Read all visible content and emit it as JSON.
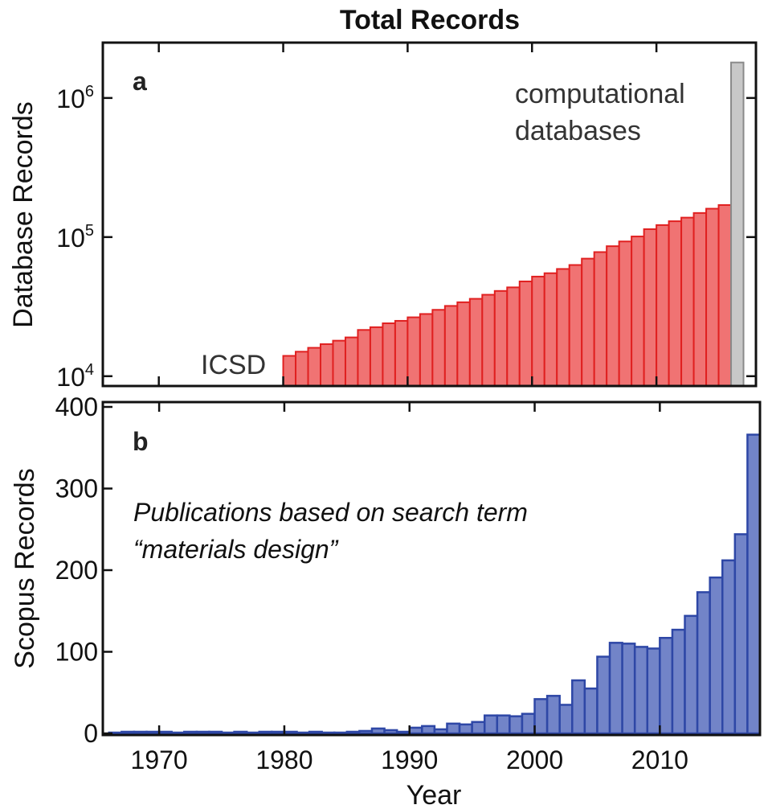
{
  "figure": {
    "title": "Total Records"
  },
  "chart_data": [
    {
      "panel": "a",
      "type": "bar",
      "ylabel": "Database Records",
      "yscale": "log",
      "ylim": [
        8500,
        2500000
      ],
      "xlim": [
        1965.5,
        2018
      ],
      "yticks": [
        10000,
        100000,
        1000000
      ],
      "ytick_labels": [
        {
          "base": "10",
          "exp": "4"
        },
        {
          "base": "10",
          "exp": "5"
        },
        {
          "base": "10",
          "exp": "6"
        }
      ],
      "series": [
        {
          "name": "ICSD",
          "color": "#f07373",
          "edge_color": "#e02020",
          "x": [
            1980,
            1981,
            1982,
            1983,
            1984,
            1985,
            1986,
            1987,
            1988,
            1989,
            1990,
            1991,
            1992,
            1993,
            1994,
            1995,
            1996,
            1997,
            1998,
            1999,
            2000,
            2001,
            2002,
            2003,
            2004,
            2005,
            2006,
            2007,
            2008,
            2009,
            2010,
            2011,
            2012,
            2013,
            2014,
            2015
          ],
          "values": [
            14000,
            15000,
            16000,
            17000,
            18000,
            19000,
            21500,
            22500,
            24000,
            25000,
            26500,
            28000,
            30000,
            32000,
            34000,
            36000,
            38500,
            41000,
            43500,
            48000,
            52000,
            55000,
            59000,
            63000,
            70000,
            78000,
            86000,
            93000,
            101000,
            114000,
            122000,
            130000,
            138000,
            149000,
            160000,
            170000
          ]
        },
        {
          "name": "computational databases",
          "color": "#c8c8c8",
          "edge_color": "#8a8a8a",
          "x": [
            2016
          ],
          "values": [
            1800000
          ]
        }
      ],
      "annotations": {
        "panel_letter": "a",
        "icsd_label": "ICSD",
        "computational_line1": "computational",
        "computational_line2": "databases"
      }
    },
    {
      "panel": "b",
      "type": "bar",
      "ylabel": "Scopus Records",
      "xlabel": "Year",
      "ylim": [
        0,
        400
      ],
      "xlim": [
        1965.5,
        2018
      ],
      "yticks": [
        0,
        100,
        200,
        300,
        400
      ],
      "xticks": [
        1970,
        1980,
        1990,
        2000,
        2010
      ],
      "series": [
        {
          "name": "Scopus \"materials design\"",
          "color": "#7284c8",
          "edge_color": "#2e47a6",
          "x": [
            1966,
            1967,
            1968,
            1969,
            1970,
            1971,
            1972,
            1973,
            1974,
            1975,
            1976,
            1977,
            1978,
            1979,
            1980,
            1981,
            1982,
            1983,
            1984,
            1985,
            1986,
            1987,
            1988,
            1989,
            1990,
            1991,
            1992,
            1993,
            1994,
            1995,
            1996,
            1997,
            1998,
            1999,
            2000,
            2001,
            2002,
            2003,
            2004,
            2005,
            2006,
            2007,
            2008,
            2009,
            2010,
            2011,
            2012,
            2013,
            2014,
            2015,
            2016,
            2017
          ],
          "values": [
            1,
            2,
            2,
            2,
            2,
            1,
            2,
            2,
            2,
            1,
            2,
            1,
            2,
            2,
            2,
            1,
            2,
            1,
            1,
            2,
            3,
            6,
            4,
            2,
            7,
            9,
            5,
            12,
            11,
            14,
            22,
            22,
            21,
            24,
            42,
            46,
            35,
            65,
            55,
            94,
            111,
            110,
            106,
            104,
            117,
            127,
            144,
            173,
            191,
            212,
            244,
            366
          ]
        }
      ],
      "annotations": {
        "panel_letter": "b",
        "caption_line1": "Publications based on search term",
        "caption_line2": "“materials design”"
      }
    }
  ]
}
